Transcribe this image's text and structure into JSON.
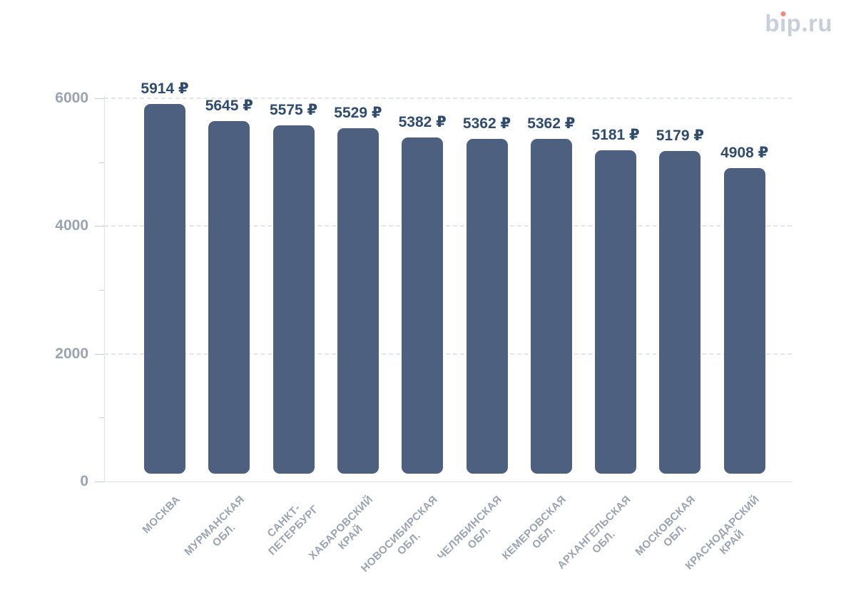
{
  "brand": {
    "name": "bip.ru",
    "part_b": "b",
    "part_i_stem": "ı",
    "part_rest": "p.ru",
    "text_color": "#c9cfda",
    "dot_color": "#f0897a"
  },
  "chart_data": {
    "type": "bar",
    "title": "",
    "xlabel": "",
    "ylabel": "",
    "categories": [
      "МОСКВА",
      "МУРМАНСКАЯ ОБЛ.",
      "САНКТ-ПЕТЕРБУРГ",
      "ХАБАРОВСКИЙ КРАЙ",
      "НОВОСИБИРСКАЯ ОБЛ.",
      "ЧЕЛЯБИНСКАЯ ОБЛ.",
      "КЕМЕРОВСКАЯ ОБЛ.",
      "АРХАНГЕЛЬСКАЯ ОБЛ.",
      "МОСКОВСКАЯ ОБЛ.",
      "КРАСНОДАРСКИЙ КРАЙ"
    ],
    "categories_display": [
      "МОСКВА",
      "МУРМАНСКАЯ\nОБЛ.",
      "САНКТ-\nПЕТЕРБУРГ",
      "ХАБАРОВСКИЙ\nКРАЙ",
      "НОВОСИБИРСКАЯ\nОБЛ.",
      "ЧЕЛЯБИНСКАЯ\nОБЛ.",
      "КЕМЕРОВСКАЯ\nОБЛ.",
      "АРХАНГЕЛЬСКАЯ\nОБЛ.",
      "МОСКОВСКАЯ\nОБЛ.",
      "КРАСНОДАРСКИЙ\nКРАЙ"
    ],
    "values": [
      5914,
      5645,
      5575,
      5529,
      5382,
      5362,
      5362,
      5181,
      5179,
      4908
    ],
    "value_labels": [
      "5914 ₽",
      "5645 ₽",
      "5575 ₽",
      "5529 ₽",
      "5382 ₽",
      "5362 ₽",
      "5362 ₽",
      "5181 ₽",
      "5179 ₽",
      "4908 ₽"
    ],
    "currency": "₽",
    "ylim": [
      0,
      6000
    ],
    "yticks": [
      0,
      2000,
      4000,
      6000
    ],
    "ytick_labels": [
      "0",
      "2000",
      "4000",
      "6000"
    ],
    "minor_yticks": [
      1000,
      3000,
      5000
    ],
    "grid": "horizontal-dashed",
    "legend": "none",
    "bar_color": "#4d6080",
    "value_label_color": "#2f4b6f",
    "tick_label_color": "#9aa3b2"
  }
}
